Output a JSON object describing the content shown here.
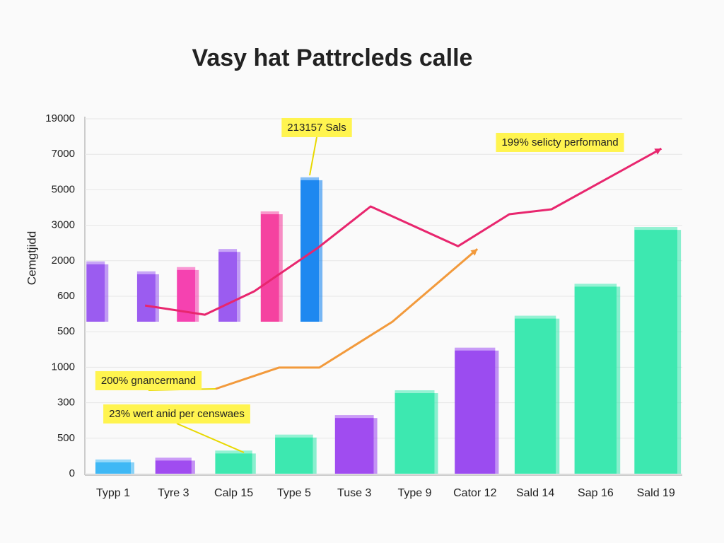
{
  "chart_data": {
    "type": "bar",
    "title": "Vasy hat Pattrcleds calle",
    "y_label": "Cemgtjidd",
    "y_axis_labels": [
      "0",
      "500",
      "300",
      "1000",
      "500",
      "600",
      "2000",
      "3000",
      "5000",
      "7000",
      "19000"
    ],
    "ylim": [
      0,
      10
    ],
    "categories": [
      "Typp 1",
      "Tyre 3",
      "Calp 15",
      "Type 5",
      "Tuse 3",
      "Type 9",
      "Cator 12",
      "Sald 14",
      "Sap 16",
      "Sald 19"
    ],
    "values": [
      0.4,
      0.45,
      0.65,
      1.1,
      1.65,
      2.35,
      3.55,
      4.45,
      5.35,
      6.95
    ],
    "colors": [
      "#3fb8f5",
      "#a04cf0",
      "#3de8b0",
      "#3de8b0",
      "#a04cf0",
      "#3de8b0",
      "#9b4cf0",
      "#3de8b0",
      "#3de8b0",
      "#3de8b0"
    ],
    "floating_bars": {
      "x": [
        -0.29,
        0.55,
        1.21,
        1.9,
        2.6,
        3.26
      ],
      "values": [
        5.98,
        5.7,
        5.82,
        6.33,
        7.39,
        8.35
      ],
      "colors": [
        "#9b5cf0",
        "#9b5cf0",
        "#f542b0",
        "#9b5cf0",
        "#f542a0",
        "#1e88f0"
      ]
    },
    "lines": [
      {
        "color": "#e8266e",
        "x": [
          0.53,
          1.52,
          2.34,
          3.4,
          4.27,
          5.72,
          6.57,
          7.27,
          9.09
        ],
        "values": [
          4.74,
          4.48,
          5.14,
          6.37,
          7.53,
          6.41,
          7.31,
          7.45,
          9.16
        ]
      },
      {
        "color": "#f29a3c",
        "x": [
          1.7,
          2.75,
          3.42,
          4.63,
          6.04
        ],
        "values": [
          2.39,
          2.99,
          2.99,
          4.28,
          6.33
        ]
      }
    ],
    "annotations": [
      "213157 Sals",
      "199% selicty performand",
      "200% gnancermand",
      "23% wert anid per censwaes"
    ],
    "grid": true
  }
}
